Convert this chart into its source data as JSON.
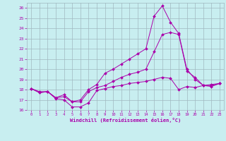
{
  "xlabel": "Windchill (Refroidissement éolien,°C)",
  "x": [
    0,
    1,
    2,
    3,
    4,
    5,
    6,
    7,
    8,
    9,
    10,
    11,
    12,
    13,
    14,
    15,
    16,
    17,
    18,
    19,
    20,
    21,
    22,
    23
  ],
  "line1": [
    18.1,
    17.7,
    17.8,
    17.1,
    17.0,
    16.3,
    16.3,
    16.7,
    17.9,
    18.1,
    18.3,
    18.4,
    18.6,
    18.7,
    18.8,
    19.0,
    19.2,
    19.1,
    18.0,
    18.3,
    18.2,
    18.4,
    18.5,
    18.6
  ],
  "line2": [
    18.1,
    17.8,
    17.8,
    17.2,
    17.3,
    16.8,
    16.8,
    17.8,
    18.2,
    18.4,
    18.8,
    19.2,
    19.5,
    19.7,
    20.0,
    21.7,
    23.4,
    23.6,
    23.4,
    19.8,
    19.2,
    18.4,
    18.3,
    18.6
  ],
  "line3": [
    18.1,
    17.7,
    17.8,
    17.2,
    17.5,
    16.8,
    17.0,
    18.0,
    18.5,
    19.6,
    20.0,
    20.5,
    21.0,
    21.5,
    22.0,
    25.2,
    26.2,
    24.6,
    23.5,
    20.0,
    19.0,
    18.4,
    18.4,
    18.6
  ],
  "line_color": "#aa00aa",
  "bg_color": "#c8eef0",
  "grid_color": "#a0b8c0",
  "ylim": [
    16,
    26.5
  ],
  "xlim": [
    -0.5,
    23.5
  ],
  "yticks": [
    16,
    17,
    18,
    19,
    20,
    21,
    22,
    23,
    24,
    25,
    26
  ],
  "xticks": [
    0,
    1,
    2,
    3,
    4,
    5,
    6,
    7,
    8,
    9,
    10,
    11,
    12,
    13,
    14,
    15,
    16,
    17,
    18,
    19,
    20,
    21,
    22,
    23
  ]
}
